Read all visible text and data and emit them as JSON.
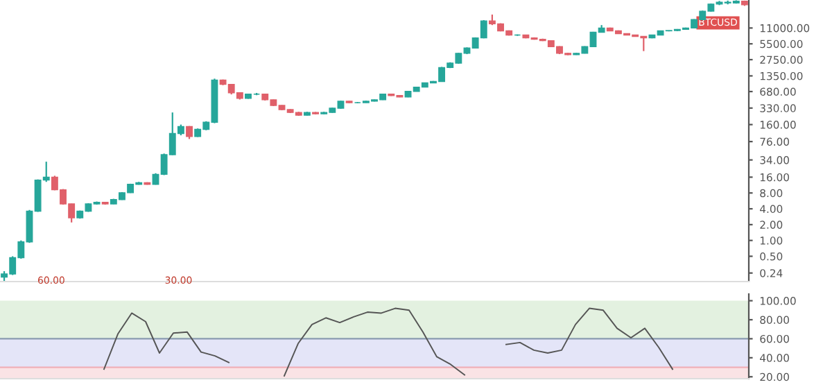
{
  "chart_data": [
    {
      "type": "candlestick",
      "log": "y",
      "tick_labels": "y",
      "grid": false,
      "annotations": [
        "BTCUSD"
      ],
      "categories": [
        null,
        null,
        null,
        null,
        null,
        null,
        null,
        null,
        null,
        null,
        null,
        null,
        null,
        null,
        null,
        null,
        null,
        null,
        null,
        null,
        null,
        null,
        null,
        null,
        null,
        null,
        null,
        null,
        null,
        null,
        null,
        null,
        null,
        null,
        null,
        null,
        null,
        null,
        null,
        null,
        null,
        null,
        null,
        null,
        null,
        null,
        null,
        null,
        null,
        null,
        null,
        null,
        null,
        null,
        null,
        null,
        null,
        null,
        null,
        null,
        null,
        null,
        null,
        null,
        null,
        null,
        null,
        null,
        null,
        null,
        null,
        null,
        null,
        null,
        null,
        null,
        null,
        null,
        null,
        null,
        null,
        null,
        null,
        null,
        null,
        null,
        null,
        null,
        null
      ],
      "ylim": [
        0.165,
        37500
      ],
      "yticks": [
        {
          "value": 11000,
          "label": "11000.00"
        },
        {
          "value": 5500,
          "label": "5500.00"
        },
        {
          "value": 2750,
          "label": "2750.00"
        },
        {
          "value": 1350,
          "label": "1350.00"
        },
        {
          "value": 680,
          "label": "680.00"
        },
        {
          "value": 330,
          "label": "330.00"
        },
        {
          "value": 160,
          "label": "160.00"
        },
        {
          "value": 76,
          "label": "76.00"
        },
        {
          "value": 34,
          "label": "34.00"
        },
        {
          "value": 16,
          "label": "16.00"
        },
        {
          "value": 8,
          "label": "8.00"
        },
        {
          "value": 4,
          "label": "4.00"
        },
        {
          "value": 2,
          "label": "2.00"
        },
        {
          "value": 1,
          "label": "1.00"
        },
        {
          "value": 0.5,
          "label": "0.50"
        },
        {
          "value": 0.24,
          "label": "0.24"
        }
      ],
      "colors": [
        "#26a69a",
        "#26a69a",
        "#26a69a",
        "#26a69a",
        "#26a69a",
        "#26a69a",
        "#e0606a",
        "#e0606a",
        "#e0606a",
        "#26a69a",
        "#26a69a",
        "#26a69a",
        "#e0606a",
        "#26a69a",
        "#26a69a",
        "#26a69a",
        "#26a69a",
        "#e0606a",
        "#26a69a",
        "#26a69a",
        "#26a69a",
        "#26a69a",
        "#e0606a",
        "#26a69a",
        "#26a69a",
        "#26a69a",
        "#e0606a",
        "#e0606a",
        "#e0606a",
        "#26a69a",
        "#26a69a",
        "#e0606a",
        "#e0606a",
        "#e0606a",
        "#e0606a",
        "#e0606a",
        "#26a69a",
        "#e0606a",
        "#26a69a",
        "#26a69a",
        "#26a69a",
        "#e0606a",
        "#26a69a",
        "#26a69a",
        "#26a69a",
        "#26a69a",
        "#e0606a",
        "#e0606a",
        "#26a69a",
        "#26a69a",
        "#26a69a",
        "#26a69a",
        "#26a69a",
        "#26a69a",
        "#26a69a",
        "#26a69a",
        "#26a69a",
        "#26a69a",
        "#e0606a",
        "#e0606a",
        "#e0606a",
        "#26a69a",
        "#e0606a",
        "#e0606a",
        "#e0606a",
        "#e0606a",
        "#e0606a",
        "#e0606a",
        "#26a69a",
        "#26a69a",
        "#26a69a",
        "#26a69a",
        "#e0606a",
        "#e0606a",
        "#e0606a",
        "#e0606a",
        "#e0606a",
        "#26a69a",
        "#26a69a",
        "#26a69a",
        "#26a69a",
        "#26a69a",
        "#26a69a",
        "#26a69a",
        "#26a69a",
        "#26a69a",
        "#26a69a",
        "#26a69a",
        "#e0606a"
      ],
      "ohlc": [
        [
          0.2,
          0.26,
          0.17,
          0.23
        ],
        [
          0.23,
          0.5,
          0.22,
          0.47
        ],
        [
          0.47,
          1.0,
          0.45,
          0.94
        ],
        [
          0.94,
          3.8,
          0.9,
          3.6
        ],
        [
          3.6,
          14.5,
          3.5,
          14.1
        ],
        [
          14.1,
          31.5,
          13,
          16
        ],
        [
          16,
          17,
          9,
          9.2
        ],
        [
          9.2,
          9.5,
          4.8,
          4.95
        ],
        [
          4.95,
          5,
          2.2,
          2.7
        ],
        [
          2.7,
          3.7,
          2.6,
          3.6
        ],
        [
          3.6,
          5.1,
          3.5,
          4.95
        ],
        [
          4.95,
          5.5,
          4.8,
          5.3
        ],
        [
          5.3,
          5.4,
          4.8,
          4.95
        ],
        [
          4.95,
          6.2,
          4.9,
          6.0
        ],
        [
          6.0,
          8.3,
          5.9,
          8.1
        ],
        [
          8.1,
          12,
          8,
          11.7
        ],
        [
          11.7,
          13,
          11.5,
          12.5
        ],
        [
          12.5,
          12.8,
          11.5,
          11.7
        ],
        [
          11.7,
          19,
          11.5,
          18.1
        ],
        [
          18.1,
          45,
          17.5,
          42.9
        ],
        [
          42.9,
          272,
          42,
          108
        ],
        [
          108,
          160,
          100,
          147
        ],
        [
          147,
          150,
          85,
          95
        ],
        [
          95,
          135,
          93,
          130
        ],
        [
          130,
          185,
          125,
          177
        ],
        [
          177,
          1196,
          170,
          1122
        ],
        [
          1122,
          1150,
          900,
          933
        ],
        [
          933,
          950,
          600,
          645
        ],
        [
          645,
          660,
          480,
          504
        ],
        [
          504,
          620,
          495,
          606
        ],
        [
          606,
          640,
          580,
          606
        ],
        [
          606,
          615,
          460,
          474
        ],
        [
          474,
          480,
          360,
          370
        ],
        [
          370,
          375,
          300,
          308
        ],
        [
          308,
          315,
          265,
          272
        ],
        [
          272,
          280,
          235,
          241
        ],
        [
          241,
          280,
          238,
          272
        ],
        [
          272,
          278,
          250,
          256
        ],
        [
          256,
          280,
          252,
          272
        ],
        [
          272,
          335,
          268,
          328
        ],
        [
          328,
          455,
          320,
          446
        ],
        [
          446,
          450,
          410,
          419
        ],
        [
          419,
          430,
          410,
          419
        ],
        [
          419,
          455,
          415,
          446
        ],
        [
          446,
          480,
          440,
          474
        ],
        [
          474,
          620,
          470,
          606
        ],
        [
          606,
          610,
          560,
          570
        ],
        [
          570,
          575,
          530,
          536
        ],
        [
          536,
          700,
          530,
          685
        ],
        [
          685,
          840,
          680,
          825
        ],
        [
          825,
          1010,
          820,
          992
        ],
        [
          992,
          1080,
          980,
          1056
        ],
        [
          1056,
          2000,
          1040,
          1950
        ],
        [
          1950,
          2450,
          1900,
          2360
        ],
        [
          2360,
          3700,
          2300,
          3630
        ],
        [
          3630,
          4700,
          3500,
          4570
        ],
        [
          4570,
          7300,
          4500,
          7140
        ],
        [
          7140,
          15500,
          7000,
          15000
        ],
        [
          15000,
          19800,
          12500,
          13200
        ],
        [
          13200,
          13500,
          9500,
          9720
        ],
        [
          9720,
          9900,
          7900,
          8080
        ],
        [
          8080,
          8300,
          7800,
          8080
        ],
        [
          8080,
          8200,
          7000,
          7140
        ],
        [
          7140,
          7300,
          6600,
          6720
        ],
        [
          6720,
          6900,
          6200,
          6320
        ],
        [
          6320,
          6400,
          4800,
          4860
        ],
        [
          4860,
          4950,
          3500,
          3630
        ],
        [
          3630,
          3700,
          3350,
          3410
        ],
        [
          3410,
          3700,
          3380,
          3630
        ],
        [
          3630,
          4950,
          3600,
          4860
        ],
        [
          4860,
          9300,
          4800,
          9140
        ],
        [
          9140,
          12500,
          9000,
          11000
        ],
        [
          11000,
          11200,
          9600,
          9720
        ],
        [
          9720,
          9900,
          8500,
          8600
        ],
        [
          8600,
          8700,
          8000,
          8080
        ],
        [
          8080,
          8200,
          7500,
          7600
        ],
        [
          7600,
          7700,
          4000,
          7140
        ],
        [
          7140,
          8200,
          7000,
          8080
        ],
        [
          8080,
          9800,
          8000,
          9720
        ],
        [
          9720,
          9900,
          9500,
          9850
        ],
        [
          9850,
          10500,
          9600,
          10340
        ],
        [
          10340,
          11200,
          10200,
          11000
        ],
        [
          11000,
          16200,
          10800,
          15900
        ],
        [
          15900,
          23500,
          15500,
          23000
        ],
        [
          23000,
          32000,
          22500,
          31400
        ],
        [
          31400,
          36000,
          30000,
          34000
        ],
        [
          34000,
          36500,
          31000,
          33000
        ],
        [
          33000,
          37000,
          32000,
          35500
        ],
        [
          35500,
          36500,
          29000,
          30500
        ]
      ]
    },
    {
      "type": "line",
      "tick_labels": "y",
      "grid": false,
      "annotations": [
        "60.00",
        "30.00"
      ],
      "categories": [
        null,
        null,
        null,
        null,
        null,
        null,
        null,
        null,
        null,
        null,
        null,
        null,
        null,
        null,
        null,
        null,
        null,
        null,
        null,
        null,
        null,
        null,
        null,
        null,
        null,
        null,
        null,
        null,
        null,
        null,
        null,
        null,
        null,
        null,
        null,
        null,
        null,
        null,
        null,
        null,
        null,
        null,
        null,
        null,
        null,
        null,
        null,
        null,
        null,
        null,
        null,
        null,
        null,
        null
      ],
      "ylim": [
        18,
        107
      ],
      "yticks": [
        {
          "value": 100,
          "label": "100.00"
        },
        {
          "value": 80,
          "label": "80.00"
        },
        {
          "value": 60,
          "label": "60.00"
        },
        {
          "value": 40,
          "label": "40.00"
        },
        {
          "value": 20,
          "label": "20.00"
        }
      ],
      "bands": [
        {
          "axis": "y",
          "from": 60,
          "to": 100,
          "color": "#e3f1e0"
        },
        {
          "axis": "y",
          "from": 30,
          "to": 60,
          "color": "#e4e5f8"
        },
        {
          "axis": "y",
          "from": 18,
          "to": 30,
          "color": "#fae3e5"
        }
      ],
      "ref_lines": [
        {
          "axis": "y",
          "value": 60,
          "color": "#8a9bb0"
        },
        {
          "axis": "y",
          "value": 30,
          "color": "#f0b0b8"
        }
      ],
      "series": [
        {
          "color": "#555555",
          "values": [
            null,
            null,
            null,
            null,
            null,
            null,
            null,
            28,
            65,
            87,
            78,
            45,
            66,
            67,
            46,
            42,
            35,
            null,
            null,
            null,
            21,
            55,
            75,
            82,
            77,
            83,
            88,
            87,
            92,
            90,
            67,
            41,
            33,
            22,
            null,
            null,
            54,
            56,
            48,
            45,
            48,
            75,
            92,
            90,
            71,
            61,
            71,
            51,
            28,
            null,
            null,
            null,
            null,
            null
          ]
        }
      ]
    }
  ]
}
